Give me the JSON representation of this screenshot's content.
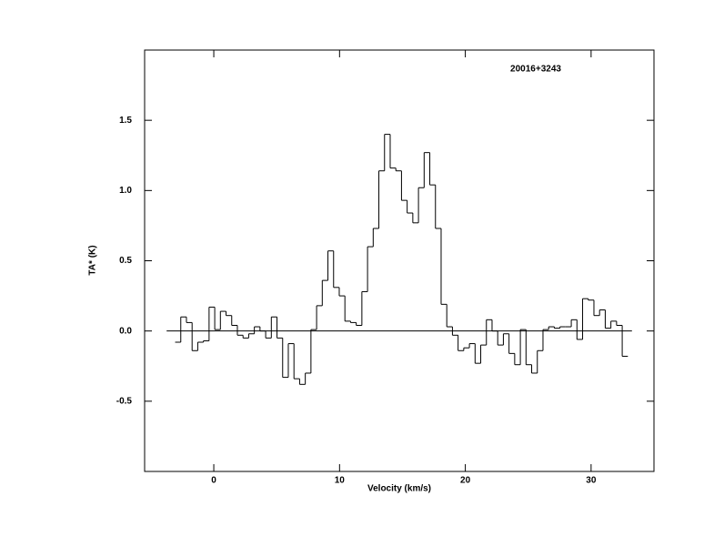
{
  "chart_data": {
    "type": "step",
    "title": "20016+3243",
    "x_label": "Velocity (km/s)",
    "y_label": "TA* (K)",
    "xlim": [
      -5.5,
      35
    ],
    "ylim": [
      -1.0,
      2.0
    ],
    "xticks": [
      0,
      10,
      20,
      30
    ],
    "yticks": [
      {
        "value": -0.5,
        "label": "-0.5"
      },
      {
        "value": 0,
        "label": "0.0"
      },
      {
        "value": 0.5,
        "label": "0.5"
      },
      {
        "value": 1.0,
        "label": "1.0"
      },
      {
        "value": 1.5,
        "label": "1.5"
      }
    ],
    "baseline": {
      "y": 0,
      "x": [
        -3.75,
        33.25
      ]
    },
    "color": "#000000",
    "x": [
      -2.85,
      -2.4,
      -1.95,
      -1.5,
      -1.05,
      -0.6,
      -0.15,
      0.3,
      0.75,
      1.2,
      1.65,
      2.1,
      2.55,
      3.0,
      3.45,
      3.9,
      4.35,
      4.8,
      5.25,
      5.7,
      6.15,
      6.6,
      7.05,
      7.5,
      7.95,
      8.4,
      8.85,
      9.3,
      9.75,
      10.2,
      10.65,
      11.1,
      11.55,
      12.0,
      12.45,
      12.9,
      13.35,
      13.8,
      14.25,
      14.7,
      15.15,
      15.6,
      16.05,
      16.5,
      16.95,
      17.4,
      17.85,
      18.3,
      18.75,
      19.2,
      19.65,
      20.1,
      20.55,
      21.0,
      21.45,
      21.9,
      22.35,
      22.8,
      23.25,
      23.7,
      24.15,
      24.6,
      25.05,
      25.5,
      25.95,
      26.4,
      26.85,
      27.3,
      27.75,
      28.2,
      28.65,
      29.1,
      29.55,
      30.0,
      30.45,
      30.9,
      31.35,
      31.8,
      32.25,
      32.7
    ],
    "values": [
      -0.08,
      0.1,
      0.06,
      -0.14,
      -0.08,
      -0.07,
      0.17,
      0.01,
      0.14,
      0.11,
      0.04,
      -0.03,
      -0.05,
      -0.02,
      0.03,
      0.0,
      -0.05,
      0.1,
      -0.05,
      -0.33,
      -0.09,
      -0.34,
      -0.38,
      -0.3,
      0.01,
      0.18,
      0.36,
      0.57,
      0.31,
      0.25,
      0.07,
      0.06,
      0.04,
      0.28,
      0.6,
      0.73,
      1.14,
      1.4,
      1.16,
      1.14,
      0.93,
      0.84,
      0.77,
      1.02,
      1.27,
      1.04,
      0.73,
      0.19,
      0.03,
      -0.03,
      -0.14,
      -0.12,
      -0.09,
      -0.23,
      -0.1,
      0.08,
      0.0,
      -0.1,
      -0.02,
      -0.16,
      -0.24,
      0.01,
      -0.24,
      -0.3,
      -0.14,
      0.01,
      0.03,
      0.02,
      0.03,
      0.03,
      0.08,
      -0.06,
      0.23,
      0.22,
      0.11,
      0.15,
      0.02,
      0.07,
      0.04,
      -0.18
    ]
  }
}
